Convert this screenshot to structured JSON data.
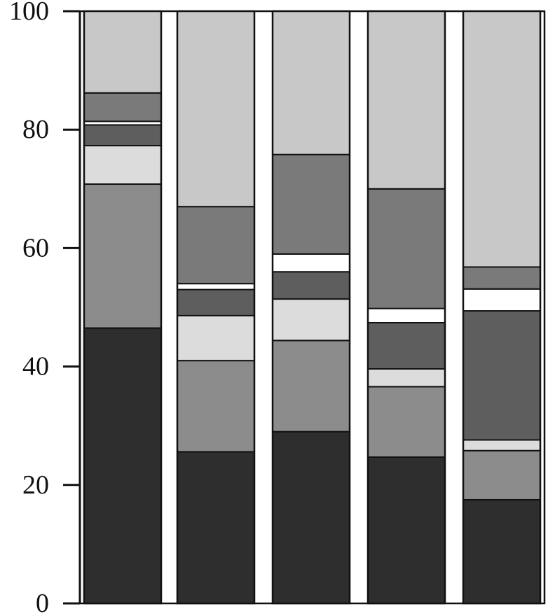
{
  "chart_data": {
    "type": "bar",
    "stacked": true,
    "title": "",
    "xlabel": "",
    "ylabel": "",
    "ylim": [
      0,
      100
    ],
    "yticks": [
      0,
      20,
      40,
      60,
      80,
      100
    ],
    "grid": false,
    "legend": "none",
    "categories": [
      "",
      "",
      "",
      "",
      ""
    ],
    "segment_colors": [
      "#2e2e2e",
      "#8c8c8c",
      "#dcdcdc",
      "#5e5e5e",
      "#ffffff",
      "#7a7a7a",
      "#c8c8c8"
    ],
    "bars": [
      {
        "segments": [
          {
            "value": 46.5,
            "color": "#2e2e2e"
          },
          {
            "value": 24.3,
            "color": "#8c8c8c"
          },
          {
            "value": 6.5,
            "color": "#dcdcdc"
          },
          {
            "value": 3.5,
            "color": "#5e5e5e"
          },
          {
            "value": 0.6,
            "color": "#ffffff"
          },
          {
            "value": 4.8,
            "color": "#7a7a7a"
          },
          {
            "value": 13.8,
            "color": "#c8c8c8"
          }
        ]
      },
      {
        "segments": [
          {
            "value": 25.6,
            "color": "#2e2e2e"
          },
          {
            "value": 15.4,
            "color": "#8c8c8c"
          },
          {
            "value": 7.6,
            "color": "#dcdcdc"
          },
          {
            "value": 4.4,
            "color": "#5e5e5e"
          },
          {
            "value": 1.0,
            "color": "#ffffff"
          },
          {
            "value": 13.0,
            "color": "#7a7a7a"
          },
          {
            "value": 33.0,
            "color": "#c8c8c8"
          }
        ]
      },
      {
        "segments": [
          {
            "value": 29.0,
            "color": "#2e2e2e"
          },
          {
            "value": 15.4,
            "color": "#8c8c8c"
          },
          {
            "value": 7.0,
            "color": "#dcdcdc"
          },
          {
            "value": 4.6,
            "color": "#5e5e5e"
          },
          {
            "value": 3.0,
            "color": "#ffffff"
          },
          {
            "value": 16.8,
            "color": "#7a7a7a"
          },
          {
            "value": 24.2,
            "color": "#c8c8c8"
          }
        ]
      },
      {
        "segments": [
          {
            "value": 24.7,
            "color": "#2e2e2e"
          },
          {
            "value": 11.9,
            "color": "#8c8c8c"
          },
          {
            "value": 3.0,
            "color": "#dcdcdc"
          },
          {
            "value": 7.8,
            "color": "#5e5e5e"
          },
          {
            "value": 2.4,
            "color": "#ffffff"
          },
          {
            "value": 20.2,
            "color": "#7a7a7a"
          },
          {
            "value": 30.0,
            "color": "#c8c8c8"
          }
        ]
      },
      {
        "segments": [
          {
            "value": 17.5,
            "color": "#2e2e2e"
          },
          {
            "value": 8.3,
            "color": "#8c8c8c"
          },
          {
            "value": 1.8,
            "color": "#dcdcdc"
          },
          {
            "value": 21.8,
            "color": "#5e5e5e"
          },
          {
            "value": 3.7,
            "color": "#ffffff"
          },
          {
            "value": 3.7,
            "color": "#7a7a7a"
          },
          {
            "value": 43.2,
            "color": "#c8c8c8"
          }
        ]
      }
    ]
  }
}
